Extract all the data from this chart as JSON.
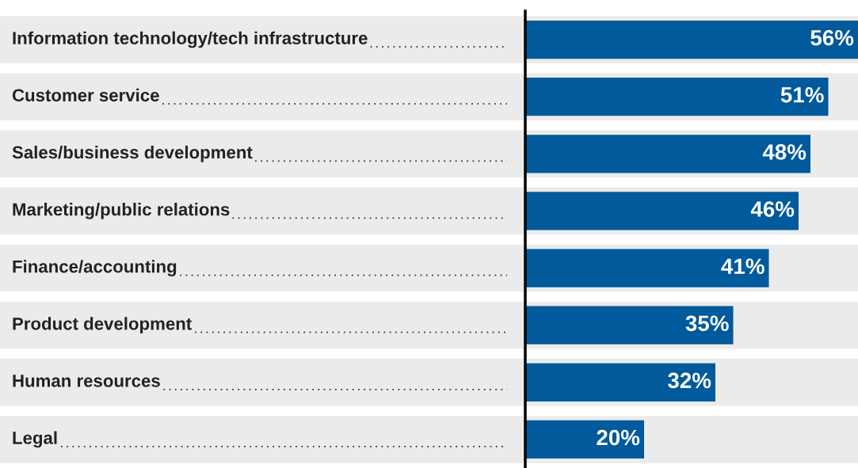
{
  "chart_data": {
    "type": "bar",
    "orientation": "horizontal",
    "categories": [
      "Information technology/tech infrastructure",
      "Customer service",
      "Sales/business development",
      "Marketing/public relations",
      "Finance/accounting",
      "Product development",
      "Human resources",
      "Legal"
    ],
    "values": [
      56,
      51,
      48,
      46,
      41,
      35,
      32,
      20
    ],
    "value_labels": [
      "56%",
      "51%",
      "48%",
      "46%",
      "41%",
      "35%",
      "32%",
      "20%"
    ],
    "color": "#005a9c"
  }
}
